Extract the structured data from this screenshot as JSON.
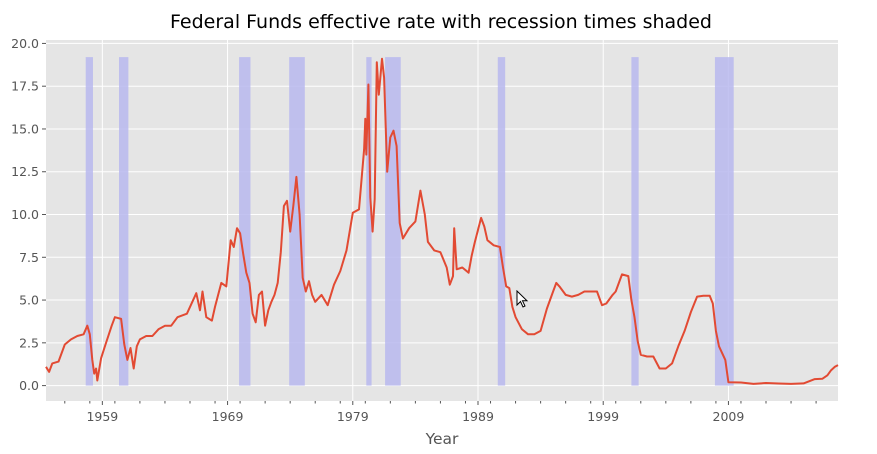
{
  "chart_data": {
    "type": "line",
    "title": "Federal Funds effective rate with recession times shaded",
    "xlabel": "Year",
    "ylabel": "",
    "xlim": [
      1954.5,
      2017.75
    ],
    "ylim": [
      -0.9,
      20.2
    ],
    "x_ticks": [
      1959,
      1969,
      1979,
      1989,
      1999,
      2009
    ],
    "x_tick_labels": [
      "1959",
      "1969",
      "1979",
      "1989",
      "1999",
      "2009"
    ],
    "y_ticks": [
      0.0,
      2.5,
      5.0,
      7.5,
      10.0,
      12.5,
      15.0,
      17.5,
      20.0
    ],
    "y_tick_labels": [
      "0.0",
      "2.5",
      "5.0",
      "7.5",
      "10.0",
      "12.5",
      "15.0",
      "17.5",
      "20.0"
    ],
    "grid": true,
    "style": "ggplot",
    "colors": {
      "line": "#e24a33",
      "recession": "#b9b9ee",
      "plot_background": "#e5e5e5",
      "grid": "#ffffff"
    },
    "recessions": [
      [
        1957.67,
        1958.25
      ],
      [
        1960.33,
        1961.08
      ],
      [
        1969.92,
        1970.83
      ],
      [
        1973.92,
        1975.17
      ],
      [
        1980.08,
        1980.5
      ],
      [
        1981.58,
        1982.83
      ],
      [
        1990.58,
        1991.17
      ],
      [
        2001.25,
        2001.83
      ],
      [
        2007.92,
        2009.42
      ]
    ],
    "recession_top": 19.2,
    "series": [
      {
        "values": [
          [
            1954.5,
            1.1
          ],
          [
            1954.75,
            0.8
          ],
          [
            1955.0,
            1.3
          ],
          [
            1955.5,
            1.4
          ],
          [
            1956.0,
            2.4
          ],
          [
            1956.5,
            2.7
          ],
          [
            1957.0,
            2.9
          ],
          [
            1957.5,
            3.0
          ],
          [
            1957.8,
            3.5
          ],
          [
            1958.0,
            3.0
          ],
          [
            1958.2,
            1.5
          ],
          [
            1958.35,
            0.7
          ],
          [
            1958.5,
            1.0
          ],
          [
            1958.6,
            0.3
          ],
          [
            1958.9,
            1.6
          ],
          [
            1959.25,
            2.4
          ],
          [
            1959.75,
            3.5
          ],
          [
            1960.0,
            4.0
          ],
          [
            1960.5,
            3.9
          ],
          [
            1960.75,
            2.4
          ],
          [
            1961.0,
            1.5
          ],
          [
            1961.25,
            2.2
          ],
          [
            1961.5,
            1.0
          ],
          [
            1961.75,
            2.3
          ],
          [
            1962.0,
            2.7
          ],
          [
            1962.5,
            2.9
          ],
          [
            1963.0,
            2.9
          ],
          [
            1963.5,
            3.3
          ],
          [
            1964.0,
            3.5
          ],
          [
            1964.5,
            3.5
          ],
          [
            1965.0,
            4.0
          ],
          [
            1965.75,
            4.2
          ],
          [
            1966.0,
            4.6
          ],
          [
            1966.5,
            5.4
          ],
          [
            1966.8,
            4.4
          ],
          [
            1967.0,
            5.5
          ],
          [
            1967.3,
            4.0
          ],
          [
            1967.75,
            3.8
          ],
          [
            1968.0,
            4.6
          ],
          [
            1968.5,
            6.0
          ],
          [
            1968.9,
            5.8
          ],
          [
            1969.25,
            8.5
          ],
          [
            1969.5,
            8.1
          ],
          [
            1969.75,
            9.2
          ],
          [
            1970.0,
            8.9
          ],
          [
            1970.25,
            7.7
          ],
          [
            1970.5,
            6.6
          ],
          [
            1970.75,
            6.0
          ],
          [
            1971.0,
            4.2
          ],
          [
            1971.25,
            3.7
          ],
          [
            1971.5,
            5.3
          ],
          [
            1971.75,
            5.5
          ],
          [
            1972.0,
            3.5
          ],
          [
            1972.25,
            4.4
          ],
          [
            1972.5,
            4.9
          ],
          [
            1972.75,
            5.3
          ],
          [
            1973.0,
            6.0
          ],
          [
            1973.25,
            7.8
          ],
          [
            1973.5,
            10.5
          ],
          [
            1973.75,
            10.8
          ],
          [
            1974.0,
            9.0
          ],
          [
            1974.25,
            10.5
          ],
          [
            1974.5,
            12.2
          ],
          [
            1974.75,
            10.0
          ],
          [
            1975.0,
            6.3
          ],
          [
            1975.25,
            5.5
          ],
          [
            1975.5,
            6.1
          ],
          [
            1975.75,
            5.3
          ],
          [
            1976.0,
            4.9
          ],
          [
            1976.5,
            5.3
          ],
          [
            1977.0,
            4.7
          ],
          [
            1977.5,
            5.9
          ],
          [
            1978.0,
            6.7
          ],
          [
            1978.5,
            7.9
          ],
          [
            1979.0,
            10.1
          ],
          [
            1979.5,
            10.3
          ],
          [
            1979.9,
            13.8
          ],
          [
            1980.0,
            15.6
          ],
          [
            1980.08,
            13.5
          ],
          [
            1980.25,
            17.6
          ],
          [
            1980.4,
            11.0
          ],
          [
            1980.58,
            9.0
          ],
          [
            1980.75,
            10.9
          ],
          [
            1980.92,
            18.9
          ],
          [
            1981.08,
            17.0
          ],
          [
            1981.33,
            19.1
          ],
          [
            1981.5,
            18.0
          ],
          [
            1981.75,
            12.5
          ],
          [
            1982.0,
            14.5
          ],
          [
            1982.25,
            14.9
          ],
          [
            1982.5,
            14.0
          ],
          [
            1982.75,
            9.5
          ],
          [
            1983.0,
            8.6
          ],
          [
            1983.5,
            9.2
          ],
          [
            1984.0,
            9.6
          ],
          [
            1984.4,
            11.4
          ],
          [
            1984.75,
            10.0
          ],
          [
            1985.0,
            8.4
          ],
          [
            1985.5,
            7.9
          ],
          [
            1986.0,
            7.8
          ],
          [
            1986.5,
            6.9
          ],
          [
            1986.75,
            5.9
          ],
          [
            1987.0,
            6.4
          ],
          [
            1987.1,
            9.2
          ],
          [
            1987.3,
            6.8
          ],
          [
            1987.75,
            6.9
          ],
          [
            1988.25,
            6.6
          ],
          [
            1988.5,
            7.6
          ],
          [
            1988.75,
            8.4
          ],
          [
            1989.0,
            9.1
          ],
          [
            1989.25,
            9.8
          ],
          [
            1989.5,
            9.3
          ],
          [
            1989.75,
            8.5
          ],
          [
            1990.25,
            8.2
          ],
          [
            1990.75,
            8.1
          ],
          [
            1991.0,
            6.9
          ],
          [
            1991.25,
            5.8
          ],
          [
            1991.5,
            5.7
          ],
          [
            1991.75,
            4.6
          ],
          [
            1992.0,
            4.0
          ],
          [
            1992.5,
            3.3
          ],
          [
            1993.0,
            3.0
          ],
          [
            1993.5,
            3.0
          ],
          [
            1994.0,
            3.2
          ],
          [
            1994.5,
            4.5
          ],
          [
            1995.0,
            5.5
          ],
          [
            1995.25,
            6.0
          ],
          [
            1995.5,
            5.8
          ],
          [
            1996.0,
            5.3
          ],
          [
            1996.5,
            5.2
          ],
          [
            1997.0,
            5.3
          ],
          [
            1997.5,
            5.5
          ],
          [
            1998.0,
            5.5
          ],
          [
            1998.5,
            5.5
          ],
          [
            1998.9,
            4.7
          ],
          [
            1999.25,
            4.8
          ],
          [
            1999.75,
            5.3
          ],
          [
            2000.0,
            5.5
          ],
          [
            2000.5,
            6.5
          ],
          [
            2001.0,
            6.4
          ],
          [
            2001.25,
            5.0
          ],
          [
            2001.5,
            4.0
          ],
          [
            2001.75,
            2.6
          ],
          [
            2002.0,
            1.8
          ],
          [
            2002.5,
            1.7
          ],
          [
            2003.0,
            1.7
          ],
          [
            2003.5,
            1.0
          ],
          [
            2004.0,
            1.0
          ],
          [
            2004.5,
            1.3
          ],
          [
            2005.0,
            2.3
          ],
          [
            2005.5,
            3.2
          ],
          [
            2006.0,
            4.3
          ],
          [
            2006.5,
            5.2
          ],
          [
            2007.0,
            5.25
          ],
          [
            2007.5,
            5.25
          ],
          [
            2007.75,
            4.8
          ],
          [
            2008.0,
            3.2
          ],
          [
            2008.25,
            2.3
          ],
          [
            2008.75,
            1.5
          ],
          [
            2009.0,
            0.2
          ],
          [
            2010.0,
            0.18
          ],
          [
            2011.0,
            0.1
          ],
          [
            2012.0,
            0.15
          ],
          [
            2013.0,
            0.12
          ],
          [
            2014.0,
            0.1
          ],
          [
            2015.0,
            0.13
          ],
          [
            2015.9,
            0.38
          ],
          [
            2016.5,
            0.4
          ],
          [
            2016.9,
            0.6
          ],
          [
            2017.2,
            0.9
          ],
          [
            2017.5,
            1.1
          ],
          [
            2017.75,
            1.2
          ]
        ]
      }
    ]
  }
}
